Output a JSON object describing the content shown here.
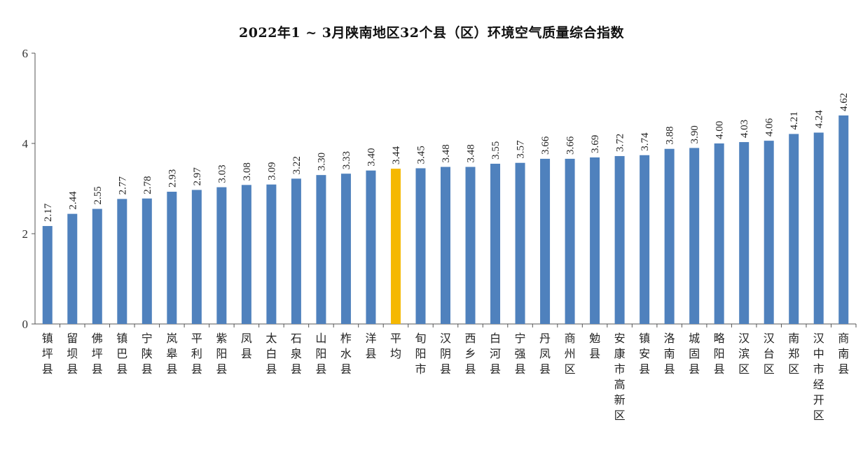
{
  "chart_data": {
    "type": "bar",
    "title": "2022年1 ~ 3月陕南地区32个县（区）环境空气质量综合指数",
    "xlabel": "",
    "ylabel": "",
    "ylim": [
      0,
      6
    ],
    "yticks": [
      0,
      2,
      4,
      6
    ],
    "grid": false,
    "legend": "none",
    "categories": [
      "镇坪县",
      "留坝县",
      "佛坪县",
      "镇巴县",
      "宁陕县",
      "岚皋县",
      "平利县",
      "紫阳县",
      "凤县",
      "太白县",
      "石泉县",
      "山阳县",
      "柞水县",
      "洋县",
      "平均",
      "旬阳市",
      "汉阴县",
      "西乡县",
      "白河县",
      "宁强县",
      "丹凤县",
      "商州区",
      "勉县",
      "安康市高新区",
      "镇安县",
      "洛南县",
      "城固县",
      "略阳县",
      "汉滨区",
      "汉台区",
      "南郑区",
      "汉中市经开区",
      "商南县"
    ],
    "values": [
      2.17,
      2.44,
      2.55,
      2.77,
      2.78,
      2.93,
      2.97,
      3.03,
      3.08,
      3.09,
      3.22,
      3.3,
      3.33,
      3.4,
      3.44,
      3.45,
      3.48,
      3.48,
      3.55,
      3.57,
      3.66,
      3.66,
      3.69,
      3.72,
      3.74,
      3.88,
      3.9,
      4.0,
      4.03,
      4.06,
      4.21,
      4.24,
      4.62
    ],
    "value_labels": [
      "2.17",
      "2.44",
      "2.55",
      "2.77",
      "2.78",
      "2.93",
      "2.97",
      "3.03",
      "3.08",
      "3.09",
      "3.22",
      "3.30",
      "3.33",
      "3.40",
      "3.44",
      "3.45",
      "3.48",
      "3.48",
      "3.55",
      "3.57",
      "3.66",
      "3.66",
      "3.69",
      "3.72",
      "3.74",
      "3.88",
      "3.90",
      "4.00",
      "4.03",
      "4.06",
      "4.21",
      "4.24",
      "4.62"
    ],
    "highlight_category": "平均",
    "colors": {
      "bar": "#4f81bd",
      "highlight": "#f5b800",
      "axis": "#555555"
    }
  }
}
